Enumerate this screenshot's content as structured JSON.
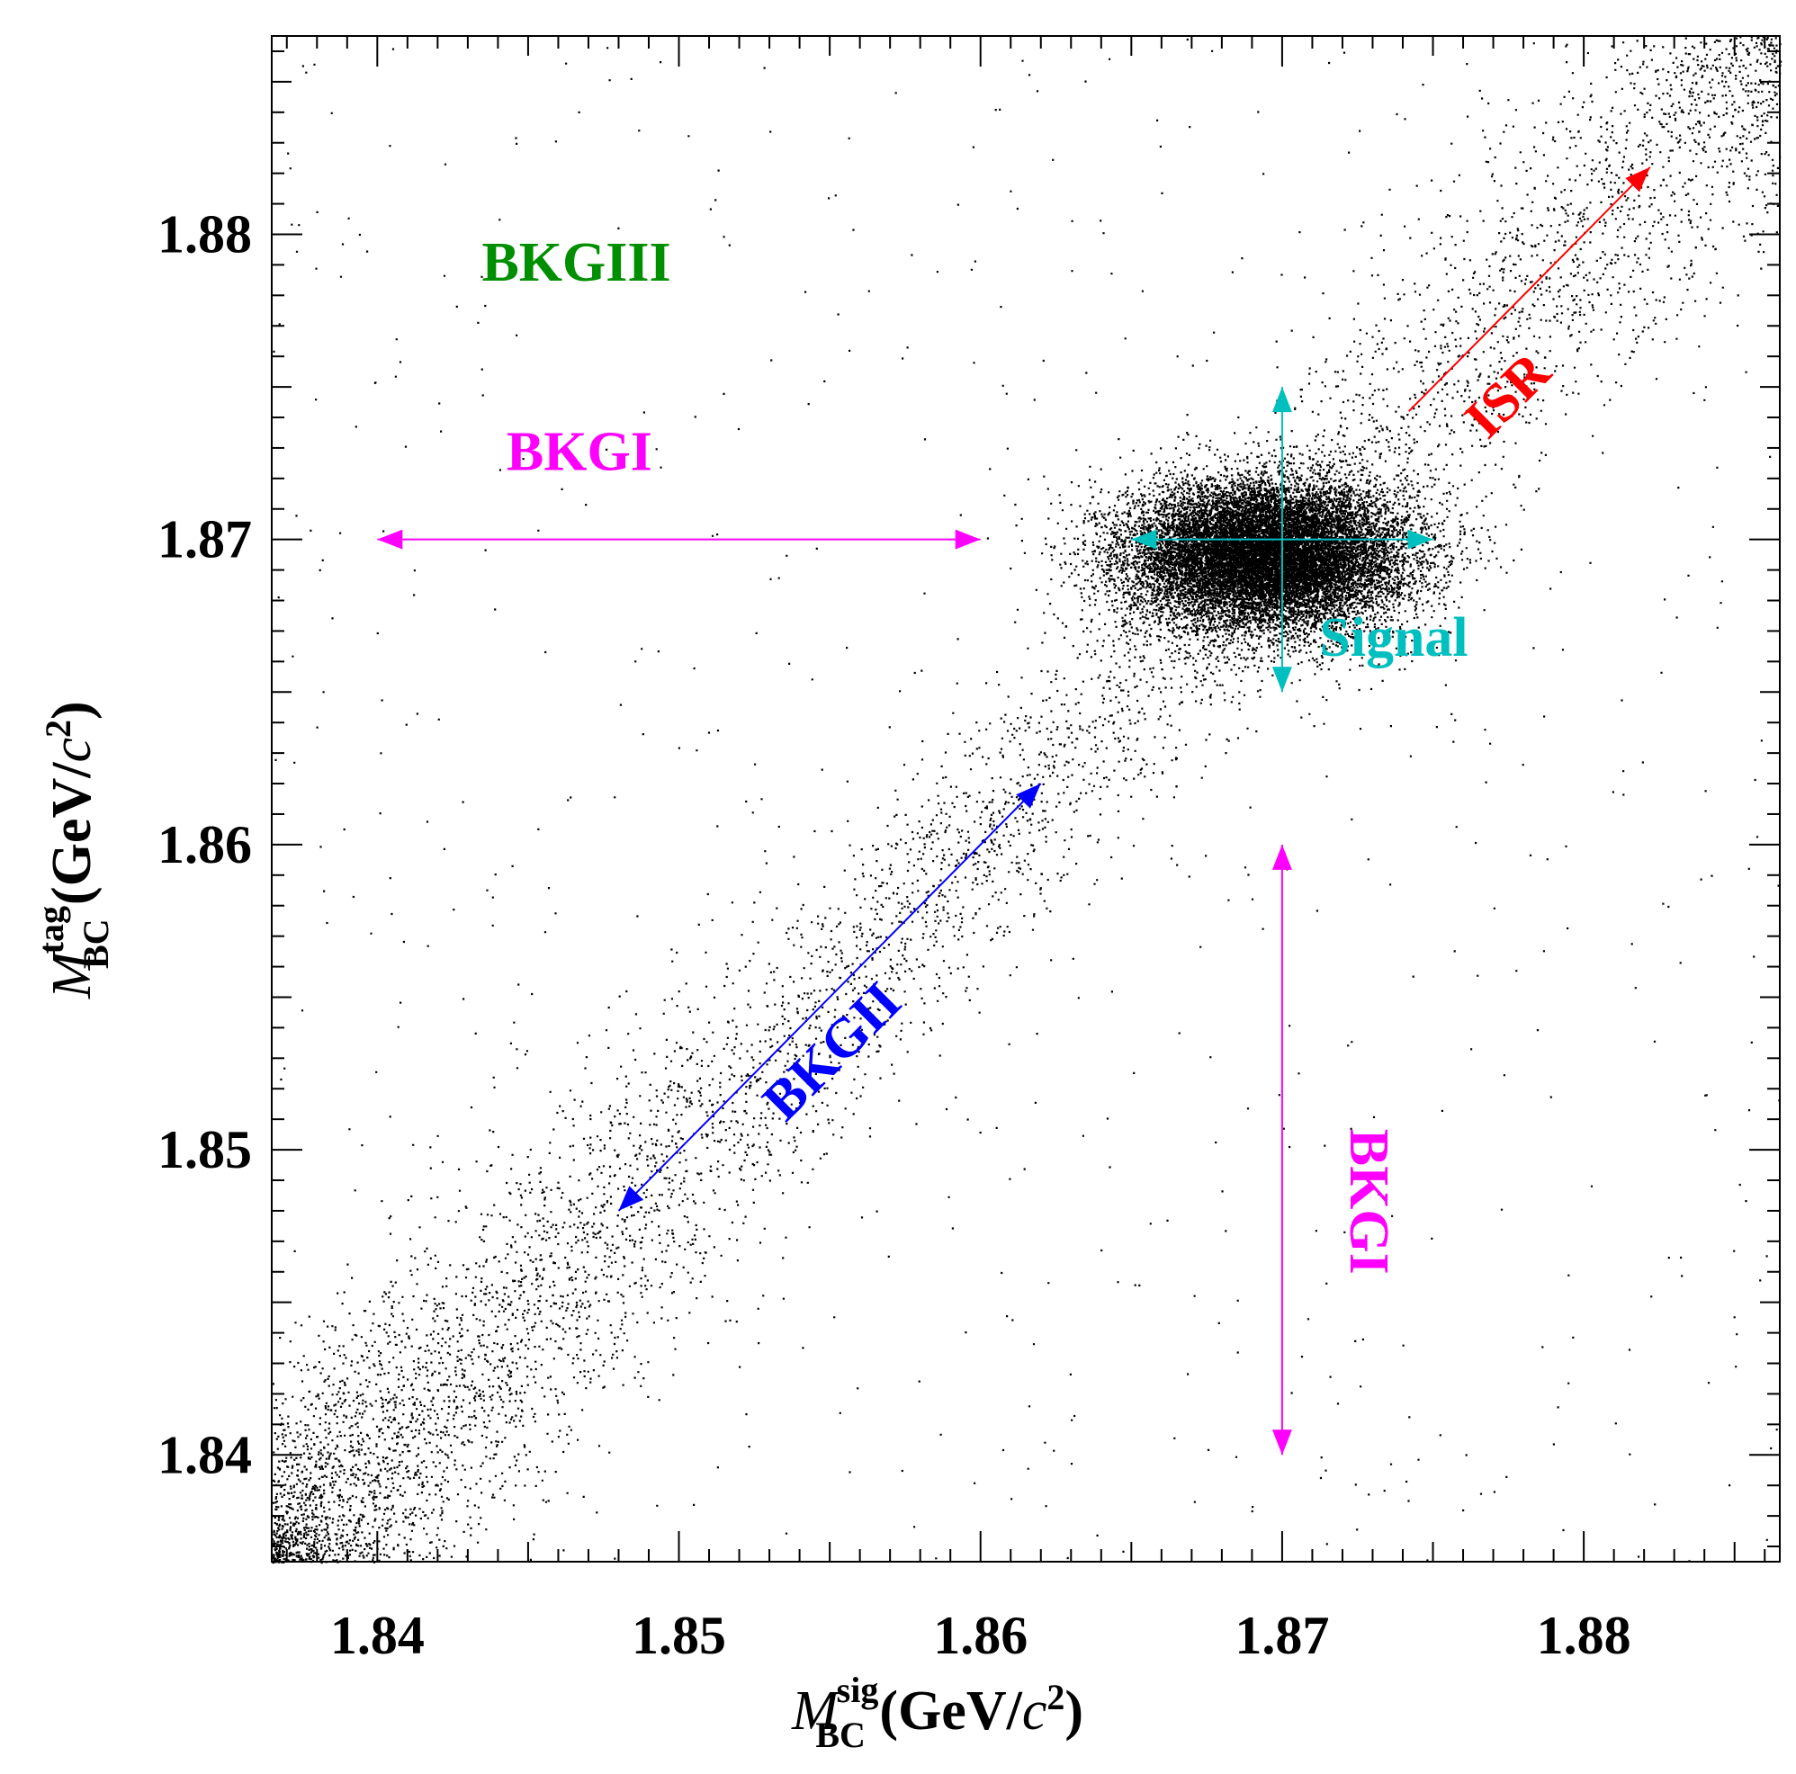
{
  "chart_data": {
    "type": "scatter",
    "title": "",
    "x_range": [
      1.8365,
      1.8865
    ],
    "y_range": [
      1.8365,
      1.8865
    ],
    "x_ticks": [
      1.84,
      1.85,
      1.86,
      1.87,
      1.88
    ],
    "y_ticks": [
      1.84,
      1.85,
      1.86,
      1.87,
      1.88
    ],
    "x_tick_labels": [
      "1.84",
      "1.85",
      "1.86",
      "1.87",
      "1.88"
    ],
    "y_tick_labels": [
      "1.84",
      "1.85",
      "1.86",
      "1.87",
      "1.88"
    ],
    "xlabel": {
      "symbol": "M",
      "sup": "sig",
      "sub": "BC",
      "unit": " (GeV/",
      "unit_var": "c",
      "unit_pow": "2",
      "unit_close": ")"
    },
    "ylabel": {
      "symbol": "M",
      "sup": "tag",
      "sub": "BC",
      "unit": " (GeV/",
      "unit_var": "c",
      "unit_pow": "2",
      "unit_close": ")"
    },
    "point_color": "#000000",
    "point_distribution": {
      "signal_peak": {
        "x": 1.8695,
        "y": 1.8695,
        "sx": 0.0023,
        "sy": 0.0012,
        "count": 16000
      },
      "diagonal_band": {
        "from": 1.8365,
        "to": 1.8865,
        "width_sigma": 0.0015,
        "count": 9000
      },
      "flat_background": {
        "count": 700
      }
    },
    "annotations": [
      {
        "id": "bkgiii",
        "text": "BKGIII",
        "color": "#008f00",
        "x": 1.8466,
        "y": 1.8789,
        "rotation": 0
      },
      {
        "id": "bkgi-horizontal",
        "text": "BKGI",
        "color": "#ff00ff",
        "x": 1.8467,
        "y": 1.8727,
        "rotation": 0
      },
      {
        "id": "signal",
        "text": "Signal",
        "color": "#00bfbf",
        "x": 1.8737,
        "y": 1.8666,
        "rotation": 0
      },
      {
        "id": "isr",
        "text": "ISR",
        "color": "#ff0000",
        "x": 1.8776,
        "y": 1.8746,
        "rotation": -45
      },
      {
        "id": "bkgii",
        "text": "BKGII",
        "color": "#0000ff",
        "x": 1.8552,
        "y": 1.8531,
        "rotation": -45
      },
      {
        "id": "bkgi-vertical",
        "text": "BKGI",
        "color": "#ff00ff",
        "x": 1.8727,
        "y": 1.8483,
        "rotation": 90
      }
    ],
    "arrows": [
      {
        "id": "bkgi-h-arrow",
        "color": "#ff00ff",
        "x1": 1.84,
        "y1": 1.87,
        "x2": 1.86,
        "y2": 1.87,
        "double": true
      },
      {
        "id": "bkgi-v-arrow",
        "color": "#ff00ff",
        "x1": 1.87,
        "y1": 1.86,
        "x2": 1.87,
        "y2": 1.84,
        "double": true
      },
      {
        "id": "signal-h-arrow",
        "color": "#00bfbf",
        "x1": 1.865,
        "y1": 1.87,
        "x2": 1.875,
        "y2": 1.87,
        "double": true
      },
      {
        "id": "signal-v-arrow",
        "color": "#00bfbf",
        "x1": 1.87,
        "y1": 1.865,
        "x2": 1.87,
        "y2": 1.875,
        "double": true
      },
      {
        "id": "bkgii-arrow",
        "color": "#0000ff",
        "x1": 1.848,
        "y1": 1.848,
        "x2": 1.862,
        "y2": 1.862,
        "double": true
      },
      {
        "id": "isr-arrow",
        "color": "#ff0000",
        "x1": 1.8742,
        "y1": 1.8742,
        "x2": 1.8822,
        "y2": 1.8822,
        "double": false
      }
    ]
  }
}
